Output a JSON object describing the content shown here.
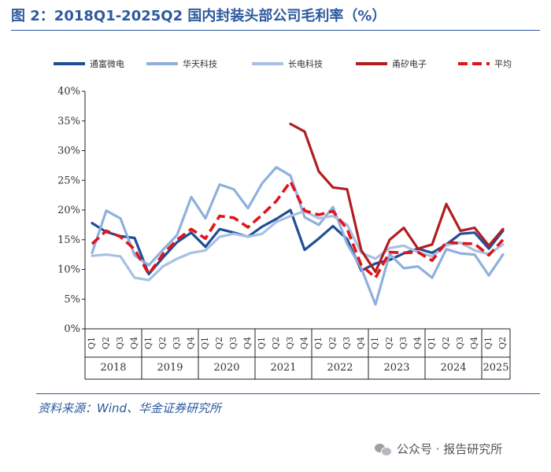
{
  "title": "图 2：2018Q1-2025Q2 国内封装头部公司毛利率（%）",
  "source": "资料来源：Wind、华金证券研究所",
  "watermark": "公众号 · 报告研究所",
  "chart_data": {
    "type": "line",
    "ylim": [
      0,
      40
    ],
    "yticks": [
      "0%",
      "5%",
      "10%",
      "15%",
      "20%",
      "25%",
      "30%",
      "35%",
      "40%"
    ],
    "quarters": [
      "Q1",
      "Q2",
      "Q3",
      "Q4",
      "Q1",
      "Q2",
      "Q3",
      "Q4",
      "Q1",
      "Q2",
      "Q3",
      "Q4",
      "Q1",
      "Q2",
      "Q3",
      "Q4",
      "Q1",
      "Q2",
      "Q3",
      "Q4",
      "Q1",
      "Q2",
      "Q3",
      "Q4",
      "Q1",
      "Q2",
      "Q3",
      "Q4",
      "Q1",
      "Q2"
    ],
    "years": [
      {
        "label": "2018",
        "count": 4
      },
      {
        "label": "2019",
        "count": 4
      },
      {
        "label": "2020",
        "count": 4
      },
      {
        "label": "2021",
        "count": 4
      },
      {
        "label": "2022",
        "count": 4
      },
      {
        "label": "2023",
        "count": 4
      },
      {
        "label": "2024",
        "count": 4
      },
      {
        "label": "2025",
        "count": 2
      }
    ],
    "series": [
      {
        "name": "通富微电",
        "color": "#1f4e96",
        "dash": false,
        "width": 3.2,
        "start": 0,
        "values": [
          17.8,
          16.3,
          15.6,
          15.3,
          9.2,
          12.0,
          14.6,
          16.2,
          13.8,
          16.8,
          16.2,
          15.5,
          17.2,
          18.5,
          20.0,
          13.3,
          15.2,
          17.3,
          15.1,
          9.8,
          11.0,
          11.6,
          12.7,
          13.5,
          12.8,
          14.2,
          16.0,
          16.2,
          13.5,
          16.5
        ]
      },
      {
        "name": "华天科技",
        "color": "#8fb0dd",
        "dash": false,
        "width": 3.2,
        "start": 0,
        "values": [
          12.8,
          19.9,
          18.6,
          12.4,
          10.7,
          13.3,
          15.8,
          22.2,
          18.6,
          24.3,
          23.5,
          20.3,
          24.5,
          27.2,
          25.8,
          18.8,
          17.5,
          20.5,
          14.3,
          10.2,
          4.1,
          12.6,
          10.2,
          10.5,
          8.6,
          13.4,
          12.7,
          12.5,
          9.0,
          12.5
        ]
      },
      {
        "name": "长电科技",
        "color": "#a7c0e3",
        "dash": false,
        "width": 3.2,
        "start": 0,
        "values": [
          12.3,
          12.5,
          12.2,
          8.6,
          8.2,
          10.5,
          11.8,
          12.8,
          13.2,
          15.5,
          16.0,
          15.5,
          16.0,
          18.0,
          19.0,
          19.8,
          18.6,
          19.0,
          17.5,
          12.8,
          11.8,
          13.6,
          14.0,
          12.9,
          12.2,
          14.1,
          14.5,
          13.2,
          12.6,
          14.2
        ]
      },
      {
        "name": "甬矽电子",
        "color": "#b01e22",
        "dash": false,
        "width": 3.2,
        "start": 14,
        "values": [
          34.5,
          33.2,
          26.5,
          23.8,
          23.5,
          13.2,
          9.6,
          15.0,
          17.0,
          13.5,
          14.2,
          21.0,
          16.5,
          17.0,
          14.0,
          16.8
        ]
      },
      {
        "name": "平均",
        "color": "#e0151b",
        "dash": true,
        "width": 3.6,
        "start": 0,
        "values": [
          14.3,
          16.5,
          15.5,
          13.4,
          9.2,
          12.6,
          15.0,
          16.8,
          15.2,
          19.0,
          18.7,
          17.1,
          19.2,
          21.5,
          24.8,
          19.9,
          19.2,
          19.8,
          16.8,
          10.7,
          8.6,
          12.9,
          12.8,
          12.9,
          11.5,
          14.6,
          14.4,
          14.3,
          12.4,
          15.0
        ]
      }
    ]
  }
}
